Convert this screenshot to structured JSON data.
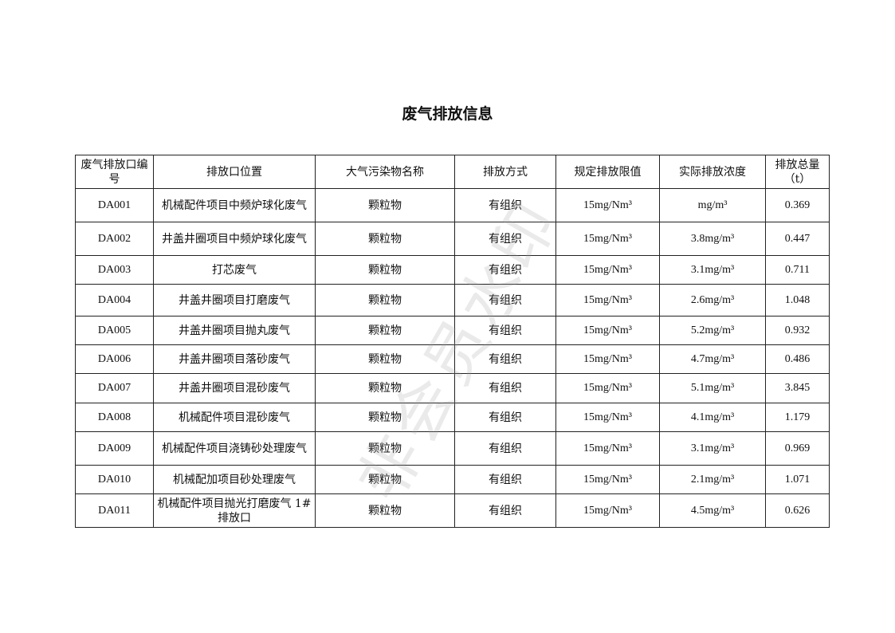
{
  "title": "废气排放信息",
  "watermark": "非会员水印",
  "table": {
    "headers": [
      "废气排放口编号",
      "排放口位置",
      "大气污染物名称",
      "排放方式",
      "规定排放限值",
      "实际排放浓度",
      "排放总量（t）"
    ],
    "rows": [
      [
        "DA001",
        "机械配件项目中频炉球化废气",
        "颗粒物",
        "有组织",
        "15mg/Nm³",
        "mg/m³",
        "0.369"
      ],
      [
        "DA002",
        "井盖井圈项目中频炉球化废气",
        "颗粒物",
        "有组织",
        "15mg/Nm³",
        "3.8mg/m³",
        "0.447"
      ],
      [
        "DA003",
        "打芯废气",
        "颗粒物",
        "有组织",
        "15mg/Nm³",
        "3.1mg/m³",
        "0.711"
      ],
      [
        "DA004",
        "井盖井圈项目打磨废气",
        "颗粒物",
        "有组织",
        "15mg/Nm³",
        "2.6mg/m³",
        "1.048"
      ],
      [
        "DA005",
        "井盖井圈项目抛丸废气",
        "颗粒物",
        "有组织",
        "15mg/Nm³",
        "5.2mg/m³",
        "0.932"
      ],
      [
        "DA006",
        "井盖井圈项目落砂废气",
        "颗粒物",
        "有组织",
        "15mg/Nm³",
        "4.7mg/m³",
        "0.486"
      ],
      [
        "DA007",
        "井盖井圈项目混砂废气",
        "颗粒物",
        "有组织",
        "15mg/Nm³",
        "5.1mg/m³",
        "3.845"
      ],
      [
        "DA008",
        "机械配件项目混砂废气",
        "颗粒物",
        "有组织",
        "15mg/Nm³",
        "4.1mg/m³",
        "1.179"
      ],
      [
        "DA009",
        "机械配件项目浇铸砂处理废气",
        "颗粒物",
        "有组织",
        "15mg/Nm³",
        "3.1mg/m³",
        "0.969"
      ],
      [
        "DA010",
        "机械配加项目砂处理废气",
        "颗粒物",
        "有组织",
        "15mg/Nm³",
        "2.1mg/m³",
        "1.071"
      ],
      [
        "DA011",
        "机械配件项目抛光打磨废气 1#排放口",
        "颗粒物",
        "有组织",
        "15mg/Nm³",
        "4.5mg/m³",
        "0.626"
      ]
    ]
  }
}
